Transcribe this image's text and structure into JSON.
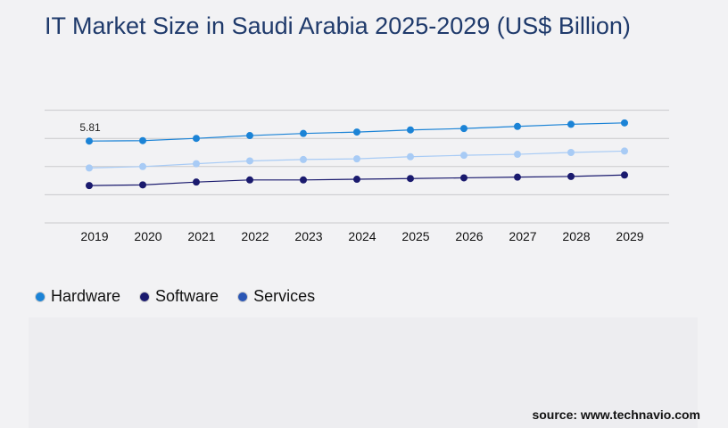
{
  "title": "IT Market Size in Saudi Arabia 2025-2029 (US$ Billion)",
  "source": "source: www.technavio.com",
  "legend": [
    {
      "name": "Hardware",
      "color": "#1b83d6"
    },
    {
      "name": "Software",
      "color": "#1a1a6e"
    },
    {
      "name": "Services",
      "color": "#2a56b5"
    }
  ],
  "chart_data": {
    "type": "line",
    "x": [
      "2019",
      "2020",
      "2021",
      "2022",
      "2023",
      "2024",
      "2025",
      "2026",
      "2027",
      "2028",
      "2029"
    ],
    "ylim": [
      0,
      10
    ],
    "grid": true,
    "legend_position": "bottom-left",
    "series": [
      {
        "name": "Hardware",
        "color": "#1b83d6",
        "values": [
          5.81,
          5.84,
          6.0,
          6.2,
          6.35,
          6.45,
          6.6,
          6.7,
          6.85,
          7.0,
          7.1
        ]
      },
      {
        "name": "",
        "color": "#a8cbf5",
        "values": [
          3.9,
          4.0,
          4.2,
          4.4,
          4.5,
          4.55,
          4.7,
          4.8,
          4.87,
          5.0,
          5.1
        ]
      },
      {
        "name": "Software",
        "color": "#1a1a6e",
        "values": [
          2.65,
          2.7,
          2.9,
          3.05,
          3.05,
          3.1,
          3.15,
          3.2,
          3.25,
          3.3,
          3.4
        ]
      }
    ],
    "data_labels": [
      {
        "series": 0,
        "index": 0,
        "text": "5.81"
      }
    ]
  }
}
